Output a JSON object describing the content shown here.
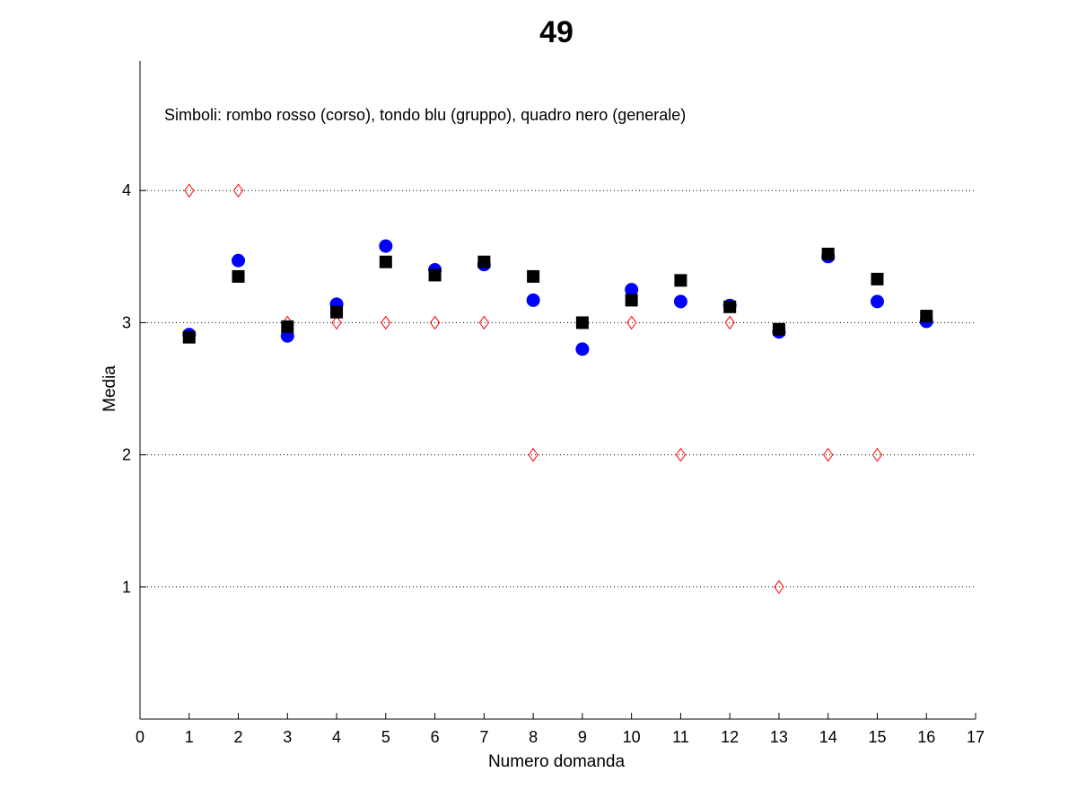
{
  "chart_data": {
    "type": "scatter",
    "title": "49",
    "xlabel": "Numero domanda",
    "ylabel": "Media",
    "annotation": "Simboli: rombo rosso (corso), tondo blu (gruppo), quadro nero (generale)",
    "xlim": [
      0,
      17
    ],
    "ylim": [
      0,
      4.98
    ],
    "x_ticks": [
      0,
      1,
      2,
      3,
      4,
      5,
      6,
      7,
      8,
      9,
      10,
      11,
      12,
      13,
      14,
      15,
      16,
      17
    ],
    "y_ticks": [
      1,
      2,
      3,
      4
    ],
    "grid": "horizontal dotted",
    "x": [
      1,
      2,
      3,
      4,
      5,
      6,
      7,
      8,
      9,
      10,
      11,
      12,
      13,
      14,
      15,
      16
    ],
    "series": [
      {
        "marker": "diamond",
        "color": "#ff0000",
        "values": [
          4,
          4,
          3,
          3,
          3,
          3,
          3,
          2,
          null,
          3,
          2,
          3,
          1,
          2,
          2,
          null
        ]
      },
      {
        "marker": "circle",
        "color": "#0000ff",
        "values": [
          2.91,
          3.47,
          2.9,
          3.14,
          3.58,
          3.4,
          3.44,
          3.17,
          2.8,
          3.25,
          3.16,
          3.13,
          2.93,
          3.5,
          3.16,
          3.01
        ]
      },
      {
        "marker": "square",
        "color": "#000000",
        "values": [
          2.89,
          3.35,
          2.97,
          3.08,
          3.46,
          3.36,
          3.46,
          3.35,
          3.0,
          3.17,
          3.32,
          3.12,
          2.95,
          3.52,
          3.33,
          3.05
        ]
      }
    ]
  }
}
